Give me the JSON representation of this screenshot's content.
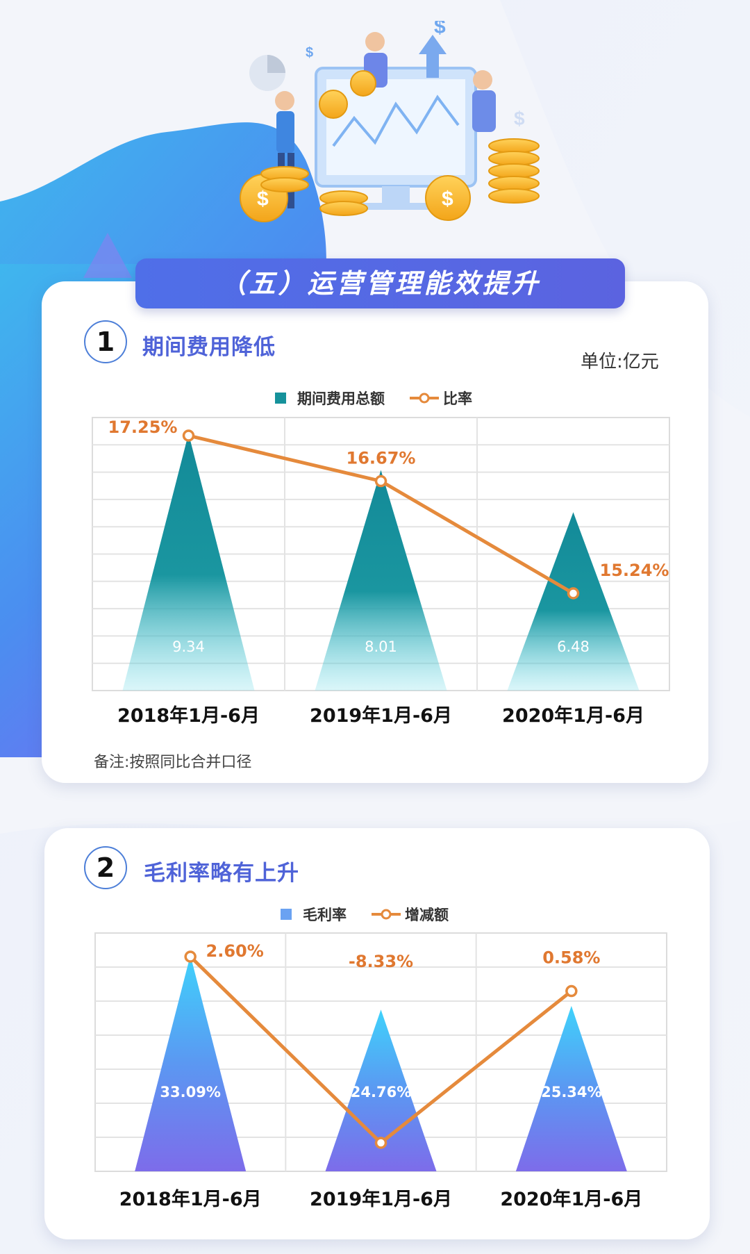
{
  "banner": {
    "title": "（五）运营管理能效提升"
  },
  "section1": {
    "number": "1",
    "title": "期间费用降低",
    "unit": "单位:亿元",
    "note": "备注:按照同比合并口径",
    "legend": {
      "bar": "期间费用总额",
      "line": "比率"
    }
  },
  "section2": {
    "number": "2",
    "title": "毛利率略有上升",
    "legend": {
      "bar": "毛利率",
      "line": "增减额"
    }
  },
  "colors": {
    "teal": "#16929b",
    "blue": "#4fa8f4",
    "purple": "#7a6ee8",
    "orange": "#e58a3c",
    "title_blue": "#4f63d8"
  },
  "chart_data": [
    {
      "type": "bar",
      "categories": [
        "2018年1月-6月",
        "2019年1月-6月",
        "2020年1月-6月"
      ],
      "series": [
        {
          "name": "期间费用总额",
          "values": [
            9.34,
            8.01,
            6.48
          ],
          "labels": [
            "9.34",
            "8.01",
            "6.48"
          ]
        },
        {
          "name": "比率",
          "type": "line",
          "values": [
            17.25,
            16.67,
            15.24
          ],
          "labels": [
            "17.25%",
            "16.67%",
            "15.24%"
          ]
        }
      ],
      "grid": true,
      "legend_position": "top"
    },
    {
      "type": "bar",
      "categories": [
        "2018年1月-6月",
        "2019年1月-6月",
        "2020年1月-6月"
      ],
      "series": [
        {
          "name": "毛利率",
          "values": [
            33.09,
            24.76,
            25.34
          ],
          "labels": [
            "33.09%",
            "24.76%",
            "25.34%"
          ]
        },
        {
          "name": "增减额",
          "type": "line",
          "values": [
            2.6,
            -8.33,
            0.58
          ],
          "labels": [
            "2.60%",
            "-8.33%",
            "0.58%"
          ]
        }
      ],
      "grid": true,
      "legend_position": "top"
    }
  ]
}
